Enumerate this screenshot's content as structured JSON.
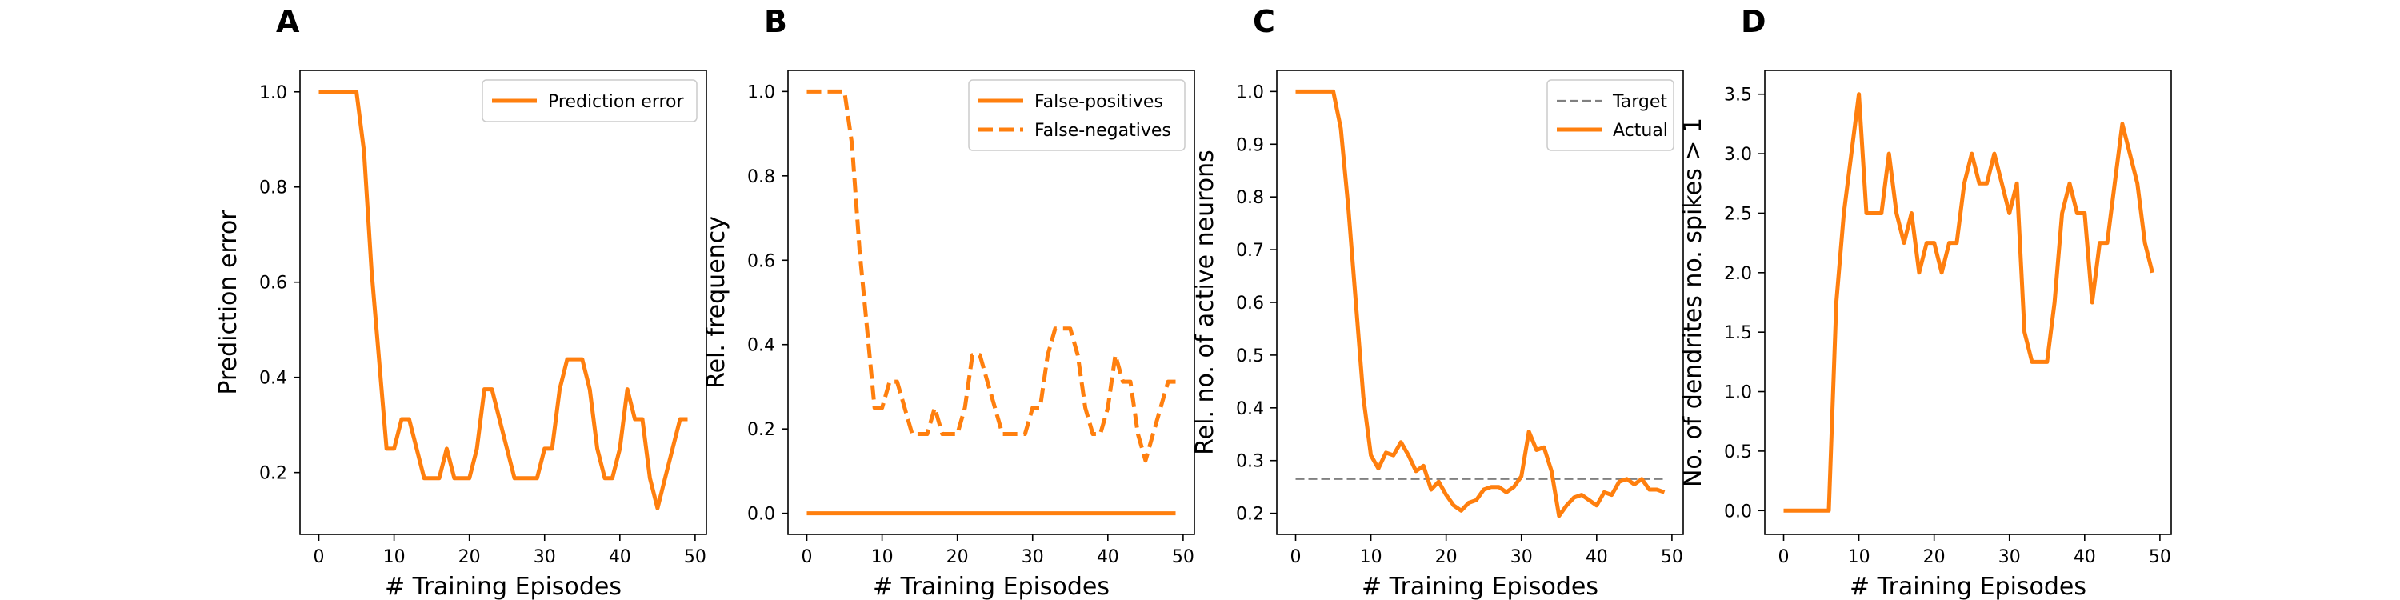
{
  "chart_data": [
    {
      "panel": "A",
      "type": "line",
      "title": "",
      "xlabel": "# Training Episodes",
      "ylabel": "Prediction error",
      "xlim": [
        -2.5,
        51.5
      ],
      "ylim": [
        0.07,
        1.045
      ],
      "xticks": [
        0,
        10,
        20,
        30,
        40,
        50
      ],
      "yticks": [
        0.2,
        0.4,
        0.6,
        0.8,
        1.0
      ],
      "ytick_labels": [
        "0.2",
        "0.4",
        "0.6",
        "0.8",
        "1.0"
      ],
      "legend_position": "top-right",
      "series": [
        {
          "name": "Prediction error",
          "color": "#ff7f0e",
          "dash": "solid",
          "x": [
            0,
            1,
            2,
            3,
            4,
            5,
            6,
            7,
            8,
            9,
            10,
            11,
            12,
            13,
            14,
            15,
            16,
            17,
            18,
            19,
            20,
            21,
            22,
            23,
            24,
            25,
            26,
            27,
            28,
            29,
            30,
            31,
            32,
            33,
            34,
            35,
            36,
            37,
            38,
            39,
            40,
            41,
            42,
            43,
            44,
            45,
            46,
            47,
            48,
            49
          ],
          "values": [
            1.0,
            1.0,
            1.0,
            1.0,
            1.0,
            1.0,
            0.875,
            0.625,
            0.438,
            0.25,
            0.25,
            0.312,
            0.312,
            0.25,
            0.188,
            0.188,
            0.188,
            0.25,
            0.188,
            0.188,
            0.188,
            0.25,
            0.375,
            0.375,
            0.312,
            0.25,
            0.188,
            0.188,
            0.188,
            0.188,
            0.25,
            0.25,
            0.375,
            0.438,
            0.438,
            0.438,
            0.375,
            0.25,
            0.188,
            0.188,
            0.25,
            0.375,
            0.312,
            0.312,
            0.188,
            0.125,
            0.188,
            0.25,
            0.312,
            0.312
          ]
        }
      ]
    },
    {
      "panel": "B",
      "type": "line",
      "title": "",
      "xlabel": "# Training Episodes",
      "ylabel": "Rel. frequency",
      "xlim": [
        -2.5,
        51.5
      ],
      "ylim": [
        -0.05,
        1.05
      ],
      "xticks": [
        0,
        10,
        20,
        30,
        40,
        50
      ],
      "yticks": [
        0.0,
        0.2,
        0.4,
        0.6,
        0.8,
        1.0
      ],
      "ytick_labels": [
        "0.0",
        "0.2",
        "0.4",
        "0.6",
        "0.8",
        "1.0"
      ],
      "legend_position": "top-right",
      "series": [
        {
          "name": "False-positives",
          "color": "#ff7f0e",
          "dash": "solid",
          "x": [
            0,
            1,
            2,
            3,
            4,
            5,
            6,
            7,
            8,
            9,
            10,
            11,
            12,
            13,
            14,
            15,
            16,
            17,
            18,
            19,
            20,
            21,
            22,
            23,
            24,
            25,
            26,
            27,
            28,
            29,
            30,
            31,
            32,
            33,
            34,
            35,
            36,
            37,
            38,
            39,
            40,
            41,
            42,
            43,
            44,
            45,
            46,
            47,
            48,
            49
          ],
          "values": [
            0,
            0,
            0,
            0,
            0,
            0,
            0,
            0,
            0,
            0,
            0,
            0,
            0,
            0,
            0,
            0,
            0,
            0,
            0,
            0,
            0,
            0,
            0,
            0,
            0,
            0,
            0,
            0,
            0,
            0,
            0,
            0,
            0,
            0,
            0,
            0,
            0,
            0,
            0,
            0,
            0,
            0,
            0,
            0,
            0,
            0,
            0,
            0,
            0,
            0
          ]
        },
        {
          "name": "False-negatives",
          "color": "#ff7f0e",
          "dash": "dashed",
          "x": [
            0,
            1,
            2,
            3,
            4,
            5,
            6,
            7,
            8,
            9,
            10,
            11,
            12,
            13,
            14,
            15,
            16,
            17,
            18,
            19,
            20,
            21,
            22,
            23,
            24,
            25,
            26,
            27,
            28,
            29,
            30,
            31,
            32,
            33,
            34,
            35,
            36,
            37,
            38,
            39,
            40,
            41,
            42,
            43,
            44,
            45,
            46,
            47,
            48,
            49
          ],
          "values": [
            1.0,
            1.0,
            1.0,
            1.0,
            1.0,
            1.0,
            0.875,
            0.625,
            0.438,
            0.25,
            0.25,
            0.312,
            0.312,
            0.25,
            0.188,
            0.188,
            0.188,
            0.25,
            0.188,
            0.188,
            0.188,
            0.25,
            0.375,
            0.375,
            0.312,
            0.25,
            0.188,
            0.188,
            0.188,
            0.188,
            0.25,
            0.25,
            0.375,
            0.438,
            0.438,
            0.438,
            0.375,
            0.25,
            0.188,
            0.188,
            0.25,
            0.375,
            0.312,
            0.312,
            0.188,
            0.125,
            0.188,
            0.25,
            0.312,
            0.312
          ]
        }
      ]
    },
    {
      "panel": "C",
      "type": "line",
      "title": "",
      "xlabel": "# Training Episodes",
      "ylabel": "Rel. no. of active neurons",
      "xlim": [
        -2.5,
        51.5
      ],
      "ylim": [
        0.16,
        1.04
      ],
      "xticks": [
        0,
        10,
        20,
        30,
        40,
        50
      ],
      "yticks": [
        0.2,
        0.3,
        0.4,
        0.5,
        0.6,
        0.7,
        0.8,
        0.9,
        1.0
      ],
      "ytick_labels": [
        "0.2",
        "0.3",
        "0.4",
        "0.5",
        "0.6",
        "0.7",
        "0.8",
        "0.9",
        "1.0"
      ],
      "legend_position": "top-right",
      "series": [
        {
          "name": "Target",
          "color": "#808080",
          "dash": "dashed",
          "x": [
            0,
            49
          ],
          "values": [
            0.265,
            0.265
          ]
        },
        {
          "name": "Actual",
          "color": "#ff7f0e",
          "dash": "solid",
          "x": [
            0,
            1,
            2,
            3,
            4,
            5,
            6,
            7,
            8,
            9,
            10,
            11,
            12,
            13,
            14,
            15,
            16,
            17,
            18,
            19,
            20,
            21,
            22,
            23,
            24,
            25,
            26,
            27,
            28,
            29,
            30,
            31,
            32,
            33,
            34,
            35,
            36,
            37,
            38,
            39,
            40,
            41,
            42,
            43,
            44,
            45,
            46,
            47,
            48,
            49
          ],
          "values": [
            1.0,
            1.0,
            1.0,
            1.0,
            1.0,
            1.0,
            0.93,
            0.78,
            0.6,
            0.42,
            0.31,
            0.285,
            0.315,
            0.31,
            0.335,
            0.31,
            0.28,
            0.29,
            0.245,
            0.26,
            0.235,
            0.215,
            0.205,
            0.22,
            0.225,
            0.245,
            0.25,
            0.25,
            0.24,
            0.25,
            0.27,
            0.355,
            0.32,
            0.325,
            0.28,
            0.195,
            0.215,
            0.23,
            0.235,
            0.225,
            0.215,
            0.24,
            0.235,
            0.26,
            0.265,
            0.255,
            0.265,
            0.245,
            0.245,
            0.24
          ]
        }
      ]
    },
    {
      "panel": "D",
      "type": "line",
      "title": "",
      "xlabel": "# Training Episodes",
      "ylabel": "No. of dendrites no. spikes > 1",
      "xlim": [
        -2.5,
        51.5
      ],
      "ylim": [
        -0.2,
        3.7
      ],
      "xticks": [
        0,
        10,
        20,
        30,
        40,
        50
      ],
      "yticks": [
        0.0,
        0.5,
        1.0,
        1.5,
        2.0,
        2.5,
        3.0,
        3.5
      ],
      "ytick_labels": [
        "0.0",
        "0.5",
        "1.0",
        "1.5",
        "2.0",
        "2.5",
        "3.0",
        "3.5"
      ],
      "legend_position": "none",
      "series": [
        {
          "name": "",
          "color": "#ff7f0e",
          "dash": "solid",
          "x": [
            0,
            1,
            2,
            3,
            4,
            5,
            6,
            7,
            8,
            9,
            10,
            11,
            12,
            13,
            14,
            15,
            16,
            17,
            18,
            19,
            20,
            21,
            22,
            23,
            24,
            25,
            26,
            27,
            28,
            29,
            30,
            31,
            32,
            33,
            34,
            35,
            36,
            37,
            38,
            39,
            40,
            41,
            42,
            43,
            44,
            45,
            46,
            47,
            48,
            49
          ],
          "values": [
            0,
            0,
            0,
            0,
            0,
            0,
            0,
            1.75,
            2.5,
            3.0,
            3.5,
            2.5,
            2.5,
            2.5,
            3.0,
            2.5,
            2.25,
            2.5,
            2.0,
            2.25,
            2.25,
            2.0,
            2.25,
            2.25,
            2.75,
            3.0,
            2.75,
            2.75,
            3.0,
            2.75,
            2.5,
            2.75,
            1.5,
            1.25,
            1.25,
            1.25,
            1.75,
            2.5,
            2.75,
            2.5,
            2.5,
            1.75,
            2.25,
            2.25,
            2.75,
            3.25,
            3.0,
            2.75,
            2.25,
            2.0
          ]
        }
      ]
    }
  ]
}
